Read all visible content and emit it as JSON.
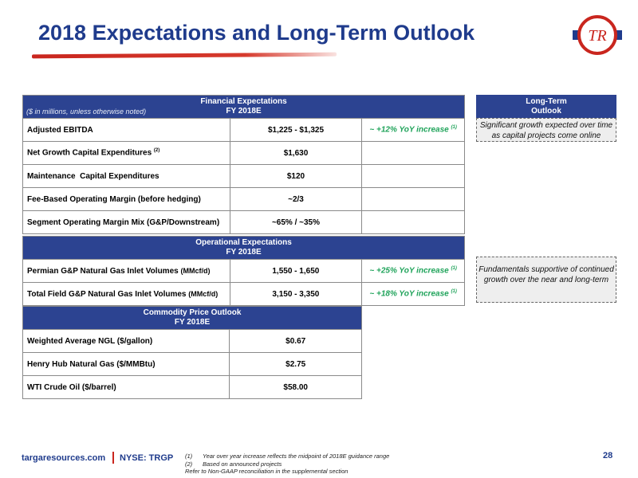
{
  "title": "2018 Expectations and Long-Term Outlook",
  "logo": {
    "text": "TR",
    "colors": {
      "ring": "#c9261e",
      "bar": "#1f3b8c"
    }
  },
  "financial": {
    "header_title": "Financial Expectations",
    "header_subtitle": "FY 2018E",
    "header_note": "($ in millions, unless otherwise noted)",
    "rows": [
      {
        "label": "Adjusted EBITDA",
        "label_sup": "",
        "value": "$1,225 - $1,325",
        "increase": "~ +12% YoY increase",
        "increase_sup": "(1)"
      },
      {
        "label": "Net Growth Capital Expenditures",
        "label_sup": "(2)",
        "value": "$1,630",
        "increase": "",
        "increase_sup": ""
      },
      {
        "label": "Maintenance  Capital Expenditures",
        "label_sup": "",
        "value": "$120",
        "increase": "",
        "increase_sup": ""
      },
      {
        "label": "Fee-Based Operating Margin (before hedging)",
        "label_sup": "",
        "value": "~2/3",
        "increase": "",
        "increase_sup": ""
      },
      {
        "label": "Segment Operating Margin Mix (G&P/Downstream)",
        "label_sup": "",
        "value": "~65% / ~35%",
        "increase": "",
        "increase_sup": ""
      }
    ]
  },
  "operational": {
    "header_title": "Operational Expectations",
    "header_subtitle": "FY 2018E",
    "rows": [
      {
        "label": "Permian G&P Natural Gas Inlet Volumes",
        "unit": "(MMcf/d)",
        "value": "1,550 - 1,650",
        "increase": "~ +25% YoY increase",
        "increase_sup": "(1)"
      },
      {
        "label": "Total Field G&P Natural Gas Inlet Volumes",
        "unit": "(MMcf/d)",
        "value": "3,150 - 3,350",
        "increase": "~ +18% YoY increase",
        "increase_sup": "(1)"
      }
    ]
  },
  "commodity": {
    "header_title": "Commodity Price Outlook",
    "header_subtitle": "FY 2018E",
    "rows": [
      {
        "label": "Weighted Average NGL ($/gallon)",
        "value": "$0.67"
      },
      {
        "label": "Henry Hub Natural Gas ($/MMBtu)",
        "value": "$2.75"
      },
      {
        "label": "WTI Crude Oil ($/barrel)",
        "value": "$58.00"
      }
    ]
  },
  "long_term": {
    "header_line1": "Long-Term",
    "header_line2": "Outlook",
    "box1": "Significant growth expected over time as capital projects come online",
    "box2": "Fundamentals supportive of continued growth over the near and long-term"
  },
  "footer": {
    "url": "targaresources.com",
    "ticker": "NYSE: TRGP",
    "notes": [
      {
        "num": "(1)",
        "text": "Year over year increase reflects the midpoint of 2018E guidance range"
      },
      {
        "num": "(2)",
        "text": "Based on announced projects"
      }
    ],
    "reference": "Refer to Non-GAAP reconciliation in the supplemental section",
    "page": "28"
  },
  "colors": {
    "header_bg": "#2c4391",
    "title": "#1f3b8c",
    "increase": "#1fa35a",
    "accent": "#c9261e"
  }
}
